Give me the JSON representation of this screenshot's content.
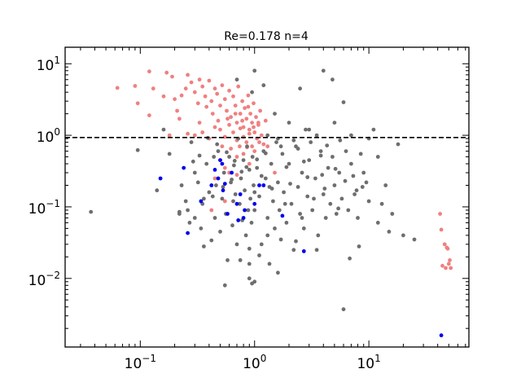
{
  "chart_data": {
    "type": "scatter",
    "title": "Re=0.178 n=4",
    "xlabel": "",
    "ylabel": "",
    "x_scale": "log",
    "y_scale": "log",
    "xlim": [
      0.022,
      75
    ],
    "ylim": [
      0.0011,
      17
    ],
    "x_ticks": [
      {
        "value": 0.1,
        "label": "10",
        "exp": "−1"
      },
      {
        "value": 1,
        "label": "10",
        "exp": "0"
      },
      {
        "value": 10,
        "label": "10",
        "exp": "1"
      }
    ],
    "y_ticks": [
      {
        "value": 0.01,
        "label": "10",
        "exp": "−2"
      },
      {
        "value": 0.1,
        "label": "10",
        "exp": "−1"
      },
      {
        "value": 1,
        "label": "10",
        "exp": "0"
      },
      {
        "value": 10,
        "label": "10",
        "exp": "1"
      }
    ],
    "reference_line": {
      "y": 0.93,
      "style": "dashed",
      "color": "#000000"
    },
    "grid": false,
    "legend": "none",
    "series": [
      {
        "color": "#f08080",
        "points": [
          [
            0.063,
            4.6
          ],
          [
            0.09,
            4.9
          ],
          [
            0.095,
            2.8
          ],
          [
            0.12,
            7.8
          ],
          [
            0.13,
            4.5
          ],
          [
            0.12,
            1.9
          ],
          [
            0.16,
            3.5
          ],
          [
            0.17,
            7.5
          ],
          [
            0.19,
            6.6
          ],
          [
            0.2,
            3.2
          ],
          [
            0.21,
            2.2
          ],
          [
            0.22,
            1.7
          ],
          [
            0.23,
            3.6
          ],
          [
            0.25,
            4.5
          ],
          [
            0.26,
            7.0
          ],
          [
            0.28,
            5.5
          ],
          [
            0.3,
            4.0
          ],
          [
            0.32,
            2.8
          ],
          [
            0.33,
            6.0
          ],
          [
            0.35,
            4.8
          ],
          [
            0.37,
            3.5
          ],
          [
            0.38,
            2.5
          ],
          [
            0.4,
            5.8
          ],
          [
            0.42,
            3.0
          ],
          [
            0.43,
            2.0
          ],
          [
            0.45,
            4.5
          ],
          [
            0.47,
            3.8
          ],
          [
            0.5,
            2.6
          ],
          [
            0.52,
            5.0
          ],
          [
            0.55,
            3.2
          ],
          [
            0.57,
            2.2
          ],
          [
            0.6,
            4.2
          ],
          [
            0.62,
            1.8
          ],
          [
            0.65,
            3.5
          ],
          [
            0.68,
            2.6
          ],
          [
            0.7,
            1.5
          ],
          [
            0.72,
            4.8
          ],
          [
            0.75,
            2.0
          ],
          [
            0.78,
            3.0
          ],
          [
            0.8,
            1.3
          ],
          [
            0.82,
            2.4
          ],
          [
            0.85,
            1.7
          ],
          [
            0.88,
            3.6
          ],
          [
            0.9,
            1.2
          ],
          [
            0.92,
            2.0
          ],
          [
            0.95,
            1.5
          ],
          [
            0.98,
            2.8
          ],
          [
            1.0,
            1.1
          ],
          [
            1.03,
            1.8
          ],
          [
            1.05,
            0.9
          ],
          [
            1.08,
            1.4
          ],
          [
            1.1,
            0.8
          ],
          [
            1.12,
            2.2
          ],
          [
            1.15,
            1.0
          ],
          [
            1.2,
            0.75
          ],
          [
            1.25,
            1.6
          ],
          [
            1.3,
            0.7
          ],
          [
            0.3,
            1.0
          ],
          [
            0.35,
            1.1
          ],
          [
            0.4,
            0.9
          ],
          [
            0.45,
            1.3
          ],
          [
            0.5,
            1.2
          ],
          [
            0.55,
            0.95
          ],
          [
            0.6,
            1.4
          ],
          [
            0.65,
            1.1
          ],
          [
            0.7,
            0.85
          ],
          [
            0.75,
            1.25
          ],
          [
            0.8,
            0.95
          ],
          [
            0.85,
            0.8
          ],
          [
            0.9,
            1.05
          ],
          [
            0.95,
            0.7
          ],
          [
            1.0,
            0.6
          ],
          [
            0.5,
            0.45
          ],
          [
            0.55,
            0.35
          ],
          [
            0.6,
            0.3
          ],
          [
            0.45,
            0.25
          ],
          [
            0.7,
            0.5
          ],
          [
            0.8,
            0.55
          ],
          [
            0.9,
            0.4
          ],
          [
            0.42,
            0.09
          ],
          [
            0.55,
            0.12
          ],
          [
            0.26,
            1.05
          ],
          [
            0.18,
            1.0
          ],
          [
            0.7,
            0.28
          ],
          [
            1.5,
            0.3
          ],
          [
            0.33,
            1.5
          ],
          [
            0.48,
            1.6
          ],
          [
            0.58,
            1.7
          ],
          [
            0.68,
            2.0
          ],
          [
            0.78,
            1.6
          ],
          [
            0.88,
            2.5
          ],
          [
            0.98,
            1.3
          ],
          [
            1.08,
            1.5
          ],
          [
            0.62,
            0.65
          ],
          [
            0.74,
            0.7
          ],
          [
            0.86,
            0.68
          ],
          [
            0.52,
            0.7
          ],
          [
            42,
            0.08
          ],
          [
            43,
            0.048
          ],
          [
            44,
            0.015
          ],
          [
            46,
            0.03
          ],
          [
            47,
            0.014
          ],
          [
            48,
            0.027
          ],
          [
            49,
            0.026
          ],
          [
            51,
            0.018
          ],
          [
            52,
            0.014
          ],
          [
            50,
            0.016
          ]
        ]
      },
      {
        "color": "#6e6e6e",
        "points": [
          [
            0.037,
            0.085
          ],
          [
            0.095,
            0.62
          ],
          [
            0.14,
            0.17
          ],
          [
            0.16,
            1.2
          ],
          [
            0.18,
            0.55
          ],
          [
            0.22,
            0.085
          ],
          [
            0.22,
            0.08
          ],
          [
            0.25,
            0.12
          ],
          [
            0.27,
            0.06
          ],
          [
            0.28,
            0.8
          ],
          [
            0.3,
            0.3
          ],
          [
            0.32,
            0.22
          ],
          [
            0.34,
            0.05
          ],
          [
            0.35,
            0.11
          ],
          [
            0.36,
            0.028
          ],
          [
            0.38,
            0.4
          ],
          [
            0.4,
            0.16
          ],
          [
            0.42,
            0.034
          ],
          [
            0.44,
            0.5
          ],
          [
            0.45,
            0.07
          ],
          [
            0.46,
            0.2
          ],
          [
            0.48,
            0.6
          ],
          [
            0.5,
            0.045
          ],
          [
            0.52,
            0.13
          ],
          [
            0.54,
            0.3
          ],
          [
            0.56,
            0.08
          ],
          [
            0.58,
            0.018
          ],
          [
            0.6,
            0.5
          ],
          [
            0.62,
            0.22
          ],
          [
            0.64,
            0.055
          ],
          [
            0.66,
            0.38
          ],
          [
            0.68,
            0.15
          ],
          [
            0.7,
            0.03
          ],
          [
            0.72,
            0.9
          ],
          [
            0.74,
            0.11
          ],
          [
            0.76,
            0.25
          ],
          [
            0.78,
            0.065
          ],
          [
            0.8,
            0.45
          ],
          [
            0.82,
            0.17
          ],
          [
            0.84,
            0.04
          ],
          [
            0.86,
            0.7
          ],
          [
            0.88,
            0.09
          ],
          [
            0.9,
            0.33
          ],
          [
            0.92,
            0.13
          ],
          [
            0.94,
            0.06
          ],
          [
            0.96,
            0.5
          ],
          [
            0.98,
            0.2
          ],
          [
            1.0,
            0.09
          ],
          [
            1.05,
            0.35
          ],
          [
            1.1,
            0.14
          ],
          [
            1.15,
            0.03
          ],
          [
            1.2,
            0.6
          ],
          [
            1.25,
            0.25
          ],
          [
            1.3,
            0.07
          ],
          [
            1.35,
            0.016
          ],
          [
            1.4,
            0.4
          ],
          [
            1.45,
            0.12
          ],
          [
            1.5,
            0.05
          ],
          [
            1.55,
            0.8
          ],
          [
            1.6,
            0.22
          ],
          [
            1.65,
            0.09
          ],
          [
            1.7,
            0.035
          ],
          [
            1.75,
            0.55
          ],
          [
            1.8,
            0.16
          ],
          [
            1.9,
            0.06
          ],
          [
            2.0,
            0.4
          ],
          [
            2.1,
            0.11
          ],
          [
            2.2,
            0.025
          ],
          [
            2.3,
            0.7
          ],
          [
            2.4,
            0.19
          ],
          [
            2.5,
            0.08
          ],
          [
            2.6,
            0.3
          ],
          [
            2.7,
            0.05
          ],
          [
            2.8,
            1.2
          ],
          [
            2.9,
            0.14
          ],
          [
            3.0,
            0.45
          ],
          [
            3.2,
            0.09
          ],
          [
            3.4,
            0.25
          ],
          [
            3.6,
            0.04
          ],
          [
            3.8,
            0.6
          ],
          [
            4.0,
            0.15
          ],
          [
            4.2,
            0.07
          ],
          [
            4.4,
            0.35
          ],
          [
            4.6,
            0.11
          ],
          [
            4.8,
            0.5
          ],
          [
            5.0,
            0.2
          ],
          [
            5.2,
            0.08
          ],
          [
            5.5,
            0.3
          ],
          [
            5.8,
            0.13
          ],
          [
            6.0,
            0.0037
          ],
          [
            6.3,
            0.6
          ],
          [
            6.6,
            0.09
          ],
          [
            7.0,
            0.4
          ],
          [
            7.5,
            0.15
          ],
          [
            8.0,
            0.07
          ],
          [
            9.0,
            0.3
          ],
          [
            10.0,
            0.12
          ],
          [
            11.0,
            1.2
          ],
          [
            12.0,
            0.5
          ],
          [
            14.0,
            0.2
          ],
          [
            16.0,
            0.08
          ],
          [
            18.0,
            0.75
          ],
          [
            20.0,
            0.04
          ],
          [
            25.0,
            0.035
          ],
          [
            4.0,
            8.0
          ],
          [
            2.5,
            4.5
          ],
          [
            1.0,
            8.0
          ],
          [
            0.7,
            6.0
          ],
          [
            1.2,
            5.0
          ],
          [
            0.95,
            4.0
          ],
          [
            1.5,
            2.0
          ],
          [
            2.0,
            1.5
          ],
          [
            3.0,
            1.2
          ],
          [
            5.0,
            1.5
          ],
          [
            6.0,
            2.9
          ],
          [
            4.8,
            6.0
          ],
          [
            3.5,
            1.0
          ],
          [
            7.0,
            1.0
          ],
          [
            8.5,
            0.55
          ],
          [
            10,
            0.9
          ],
          [
            2.2,
            0.85
          ],
          [
            1.7,
            0.7
          ],
          [
            0.9,
            0.016
          ],
          [
            0.95,
            0.0085
          ],
          [
            0.9,
            0.01
          ],
          [
            1.0,
            0.009
          ],
          [
            1.6,
            0.012
          ],
          [
            0.55,
            0.008
          ],
          [
            0.3,
            0.07
          ],
          [
            0.65,
            0.12
          ],
          [
            0.75,
            0.018
          ],
          [
            0.9,
            0.026
          ],
          [
            1.1,
            0.021
          ],
          [
            1.3,
            0.04
          ],
          [
            2.3,
            0.033
          ],
          [
            3.5,
            0.025
          ],
          [
            6.8,
            0.019
          ],
          [
            8.2,
            0.028
          ],
          [
            12,
            0.06
          ],
          [
            15,
            0.045
          ],
          [
            13,
            0.11
          ],
          [
            9.5,
            0.22
          ],
          [
            7.8,
            0.17
          ],
          [
            5.4,
            0.095
          ],
          [
            4.1,
            0.18
          ],
          [
            3.3,
            0.13
          ],
          [
            2.6,
            0.07
          ],
          [
            1.85,
            0.11
          ],
          [
            1.42,
            0.18
          ],
          [
            1.15,
            0.27
          ],
          [
            0.85,
            0.36
          ],
          [
            0.67,
            0.44
          ],
          [
            0.57,
            0.58
          ],
          [
            0.47,
            0.75
          ],
          [
            0.39,
            0.92
          ],
          [
            0.33,
            0.52
          ],
          [
            0.29,
            0.43
          ],
          [
            0.26,
            0.09
          ],
          [
            0.23,
            0.2
          ],
          [
            1.3,
            1.0
          ],
          [
            1.6,
            0.9
          ],
          [
            2.4,
            0.65
          ],
          [
            3.1,
            0.8
          ],
          [
            4.3,
            0.72
          ],
          [
            5.6,
            0.85
          ],
          [
            3.8,
            0.52
          ],
          [
            2.7,
            0.43
          ],
          [
            1.9,
            0.36
          ],
          [
            1.25,
            0.56
          ],
          [
            1.05,
            0.46
          ],
          [
            0.77,
            0.31
          ],
          [
            0.63,
            0.24
          ],
          [
            0.53,
            0.19
          ],
          [
            0.43,
            0.14
          ],
          [
            0.36,
            0.13
          ],
          [
            1.0,
            0.16
          ],
          [
            1.35,
            0.19
          ],
          [
            2.05,
            0.21
          ],
          [
            2.9,
            0.26
          ],
          [
            3.9,
            0.28
          ],
          [
            5.1,
            0.34
          ],
          [
            6.2,
            0.23
          ],
          [
            7.3,
            0.27
          ],
          [
            8.8,
            0.19
          ]
        ]
      },
      {
        "color": "#0000ee",
        "points": [
          [
            0.15,
            0.25
          ],
          [
            0.24,
            0.35
          ],
          [
            0.26,
            0.043
          ],
          [
            0.34,
            0.12
          ],
          [
            0.42,
            0.2
          ],
          [
            0.45,
            0.33
          ],
          [
            0.48,
            0.25
          ],
          [
            0.5,
            0.45
          ],
          [
            0.52,
            0.4
          ],
          [
            0.53,
            0.17
          ],
          [
            0.55,
            0.21
          ],
          [
            0.58,
            0.08
          ],
          [
            0.63,
            0.3
          ],
          [
            0.7,
            0.11
          ],
          [
            0.72,
            0.065
          ],
          [
            0.75,
            0.15
          ],
          [
            0.8,
            0.07
          ],
          [
            0.82,
            0.09
          ],
          [
            1.0,
            0.11
          ],
          [
            1.1,
            0.2
          ],
          [
            1.2,
            0.2
          ],
          [
            1.75,
            0.075
          ],
          [
            2.7,
            0.024
          ],
          [
            43,
            0.0016
          ]
        ]
      }
    ]
  }
}
